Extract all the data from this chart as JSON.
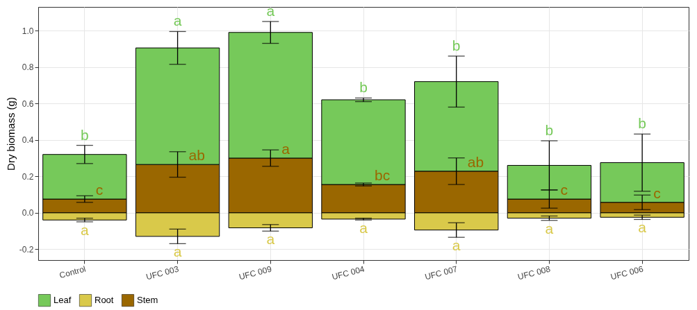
{
  "chart_data": {
    "type": "bar",
    "stacked": true,
    "ylabel": "Dry biomass (g)",
    "categories": [
      "Control",
      "UFC 003",
      "UFC 009",
      "UFC 004",
      "UFC 007",
      "UFC 008",
      "UFC 006"
    ],
    "series": [
      {
        "name": "Root",
        "color": "#d9c94a",
        "values": [
          -0.04,
          -0.13,
          -0.083,
          -0.035,
          -0.095,
          -0.03,
          -0.025
        ],
        "errors": [
          0.01,
          0.04,
          0.018,
          0.005,
          0.04,
          0.012,
          0.012
        ],
        "value_labels": [
          "a",
          "a",
          "a",
          "a",
          "a",
          "a",
          "a"
        ]
      },
      {
        "name": "Stem",
        "color": "#9a6700",
        "values": [
          0.075,
          0.265,
          0.3,
          0.155,
          0.228,
          0.075,
          0.057
        ],
        "errors": [
          0.018,
          0.07,
          0.045,
          0.008,
          0.073,
          0.05,
          0.04
        ],
        "value_labels": [
          "c",
          "ab",
          "a",
          "bc",
          "ab",
          "c",
          "c"
        ]
      },
      {
        "name": "Leaf",
        "color": "#76c95a",
        "values": [
          0.245,
          0.64,
          0.69,
          0.465,
          0.492,
          0.185,
          0.218
        ],
        "errors": [
          0.05,
          0.09,
          0.06,
          0.01,
          0.14,
          0.135,
          0.157
        ],
        "value_labels": [
          "b",
          "a",
          "a",
          "b",
          "b",
          "b",
          "b"
        ]
      }
    ],
    "ylim": [
      -0.26,
      1.13
    ],
    "yticks": [
      -0.2,
      {
        "value": 0,
        "label": "0.0"
      },
      0.2,
      0.4,
      0.6,
      0.8,
      {
        "value": 1,
        "label": "1.0"
      }
    ],
    "grid": true,
    "legend": "bottom"
  }
}
